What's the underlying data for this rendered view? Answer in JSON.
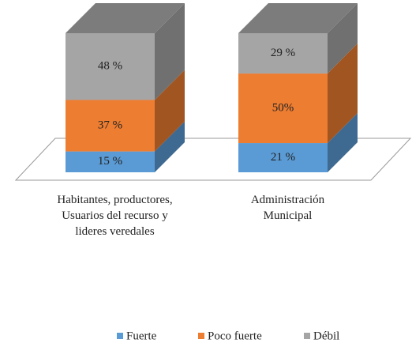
{
  "chart_data": {
    "type": "bar",
    "stacked": true,
    "categories": [
      "Habitantes, productores, Usuarios del recurso y lideres veredales",
      "Administración Municipal"
    ],
    "series": [
      {
        "name": "Fuerte",
        "color": "#5b9bd5",
        "values": [
          15,
          21
        ],
        "value_labels": [
          "15 %",
          "21 %"
        ]
      },
      {
        "name": "Poco fuerte",
        "color": "#ed7d31",
        "values": [
          37,
          50
        ],
        "value_labels": [
          "37 %",
          "50%"
        ]
      },
      {
        "name": "Débil",
        "color": "#a5a5a5",
        "values": [
          48,
          29
        ],
        "value_labels": [
          "48 %",
          "29 %"
        ]
      }
    ],
    "legend": "bottom"
  }
}
